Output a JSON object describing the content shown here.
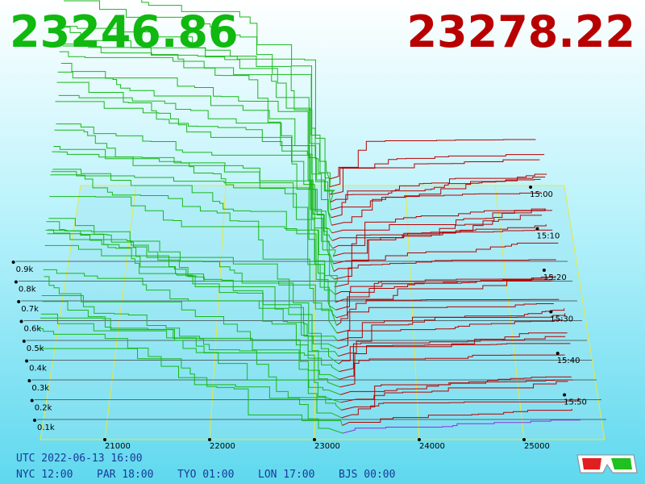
{
  "bid_price": "23246.86",
  "ask_price": "23278.22",
  "price_axis": {
    "ticks": [
      "21000",
      "22000",
      "23000",
      "24000",
      "25000"
    ]
  },
  "depth_axis": {
    "ticks": [
      "0.1k",
      "0.2k",
      "0.3k",
      "0.4k",
      "0.5k",
      "0.6k",
      "0.7k",
      "0.8k",
      "0.9k"
    ]
  },
  "time_axis": {
    "ticks": [
      "15:00",
      "15:10",
      "15:20",
      "15:30",
      "15:40",
      "15:50"
    ]
  },
  "footer": {
    "utc": "UTC 2022-06-13 16:00",
    "zones": [
      "NYC 12:00",
      "PAR 18:00",
      "TYO 01:00",
      "LON 17:00",
      "BJS 00:00"
    ]
  }
}
